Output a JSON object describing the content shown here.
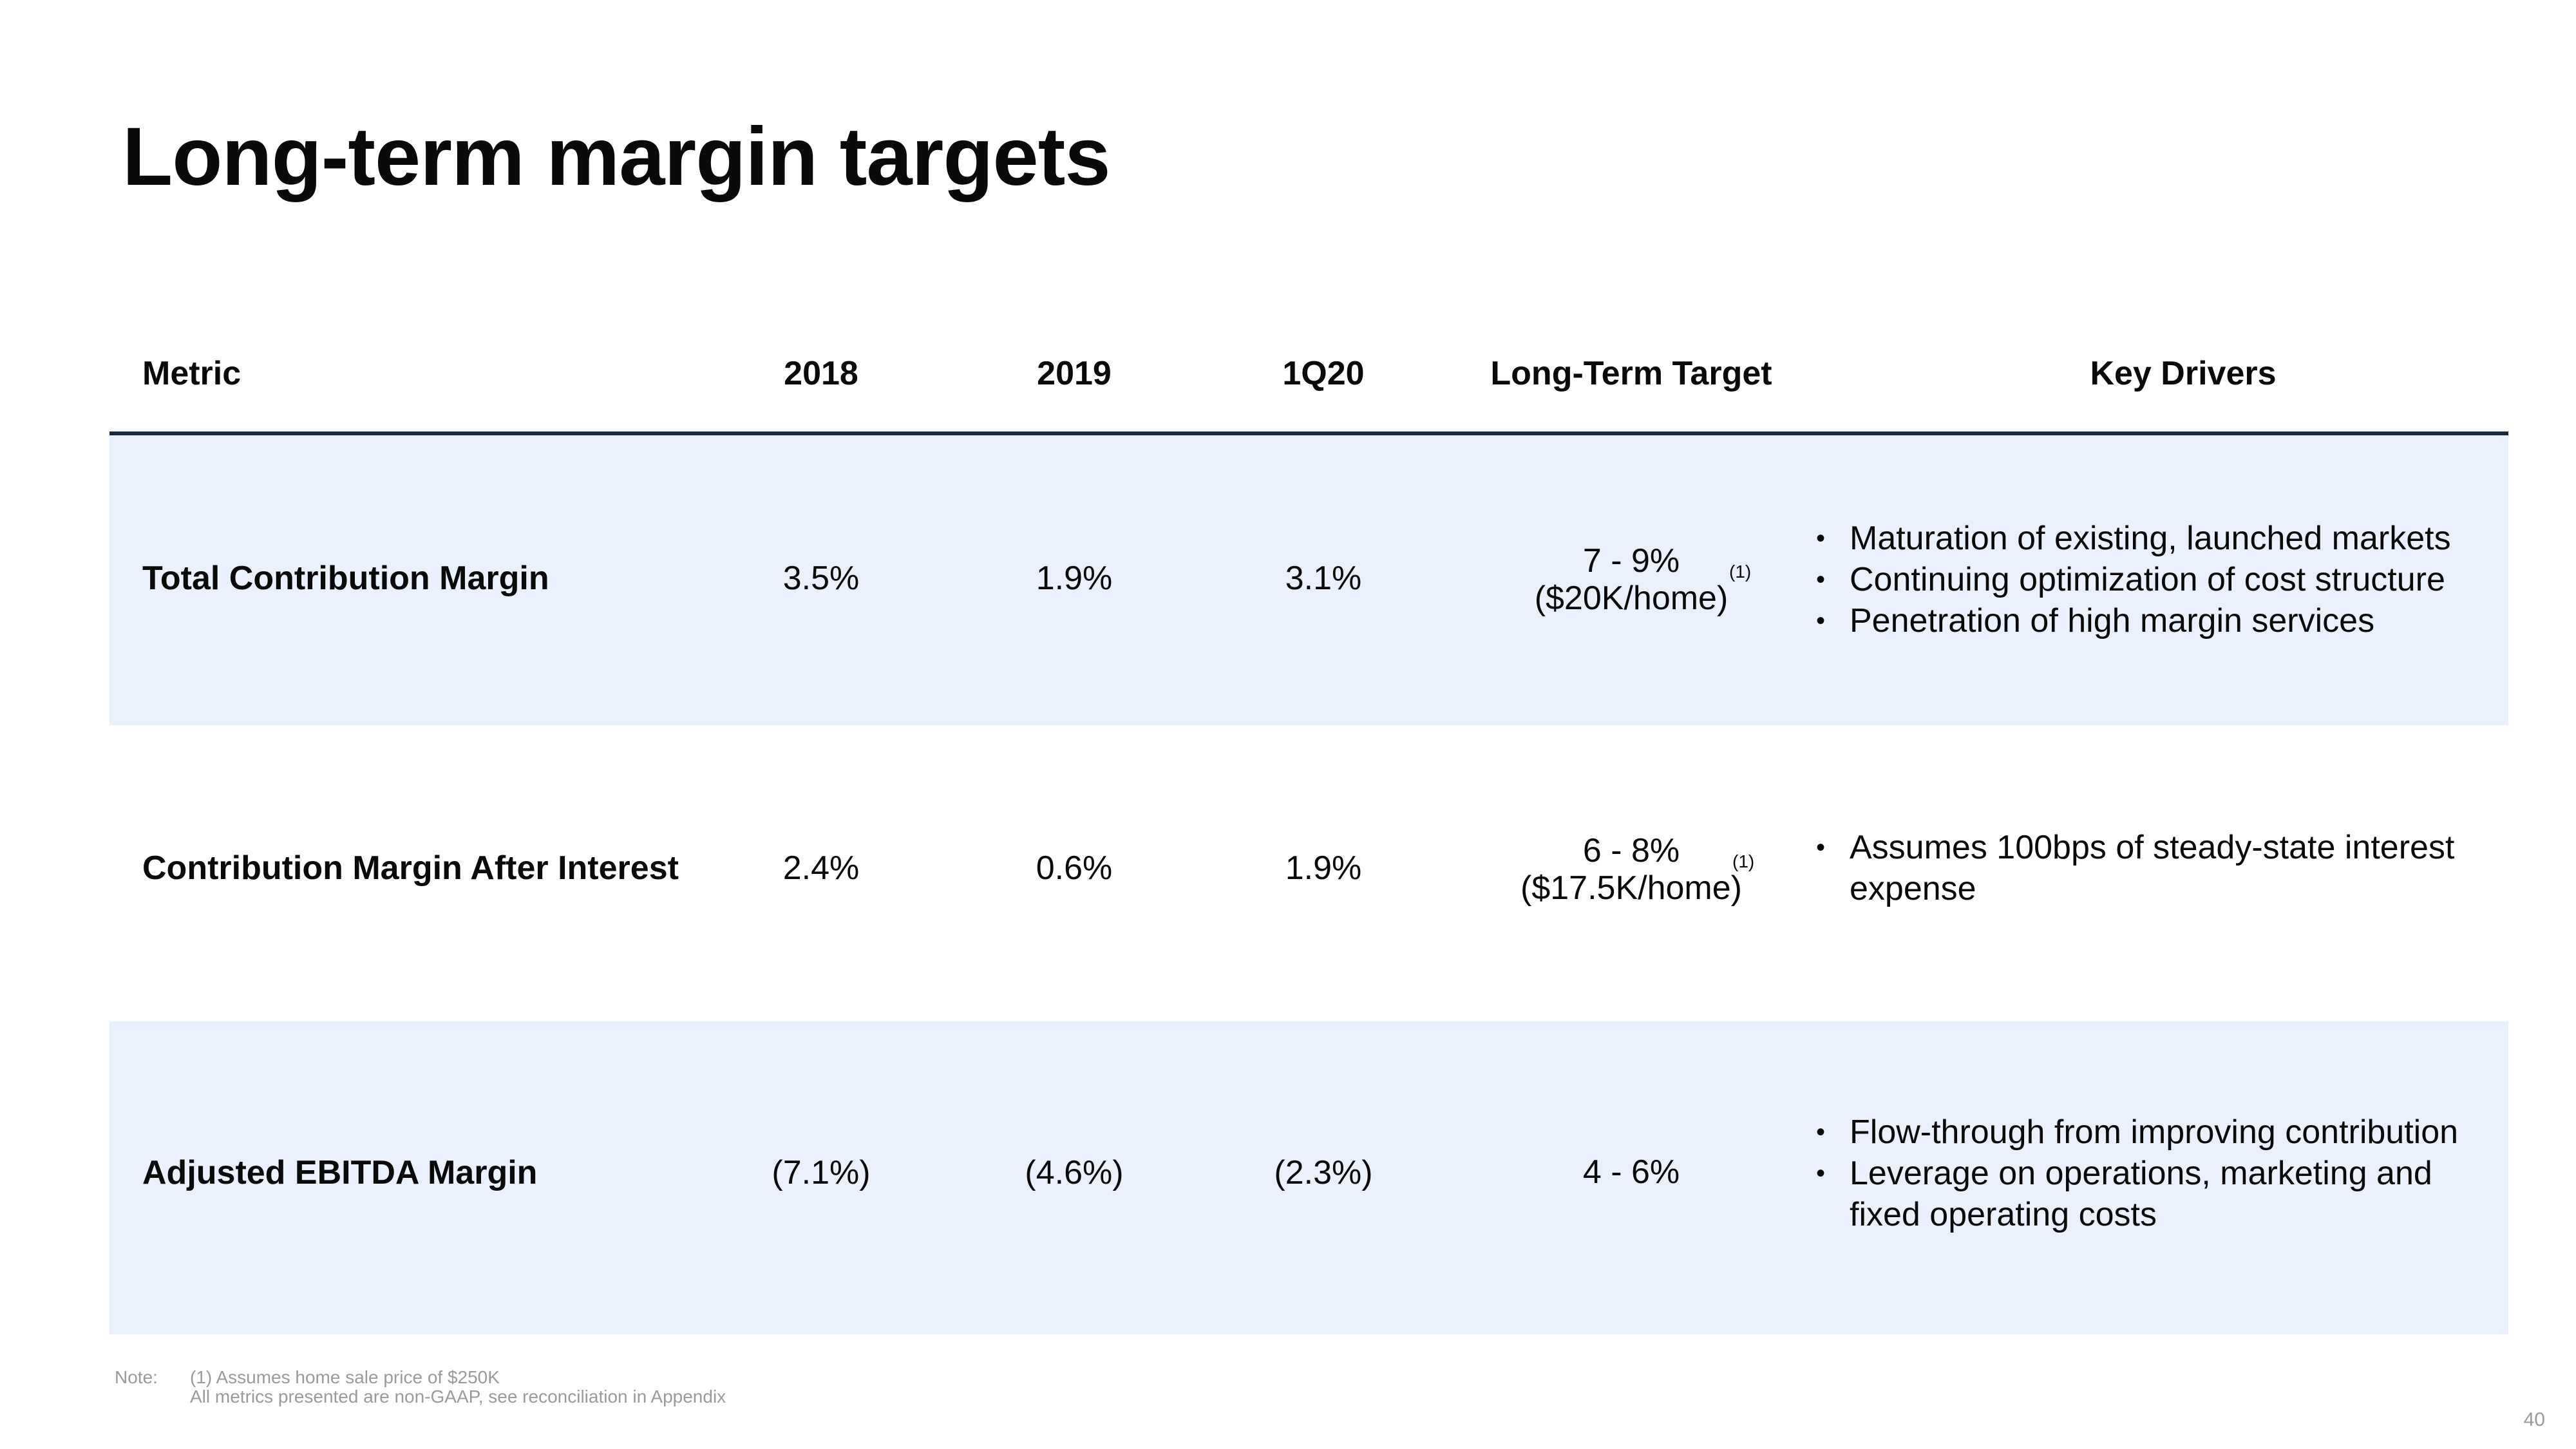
{
  "title": "Long-term margin targets",
  "colors": {
    "row_shade": "#eaf1fc",
    "header_rule": "#1b2a41",
    "note_text": "#9a9a9a"
  },
  "table": {
    "headers": {
      "metric": "Metric",
      "y2018": "2018",
      "y2019": "2019",
      "q1_2020": "1Q20",
      "target": "Long-Term Target",
      "drivers": "Key Drivers"
    },
    "rows": [
      {
        "metric": "Total Contribution Margin",
        "y2018": "3.5%",
        "y2019": "1.9%",
        "q1_2020": "3.1%",
        "target_line1": "7 - 9%",
        "target_line2": "($20K/home)",
        "target_footnote": "(1)",
        "drivers": [
          "Maturation of existing, launched markets",
          "Continuing optimization of cost structure",
          "Penetration of high margin services"
        ]
      },
      {
        "metric": "Contribution Margin After Interest",
        "y2018": "2.4%",
        "y2019": "0.6%",
        "q1_2020": "1.9%",
        "target_line1": "6 - 8%",
        "target_line2": "($17.5K/home)",
        "target_footnote": "(1)",
        "drivers": [
          "Assumes 100bps of steady-state interest expense"
        ]
      },
      {
        "metric": "Adjusted EBITDA Margin",
        "y2018": "(7.1%)",
        "y2019": "(4.6%)",
        "q1_2020": "(2.3%)",
        "target_line1": "4 - 6%",
        "drivers": [
          "Flow-through from improving contribution",
          "Leverage on operations, marketing and fixed operating costs"
        ]
      }
    ]
  },
  "note": {
    "label": "Note:",
    "lines": [
      "(1) Assumes home sale price of $250K",
      "All metrics presented are non-GAAP, see reconciliation in Appendix"
    ]
  },
  "page_number": "40"
}
